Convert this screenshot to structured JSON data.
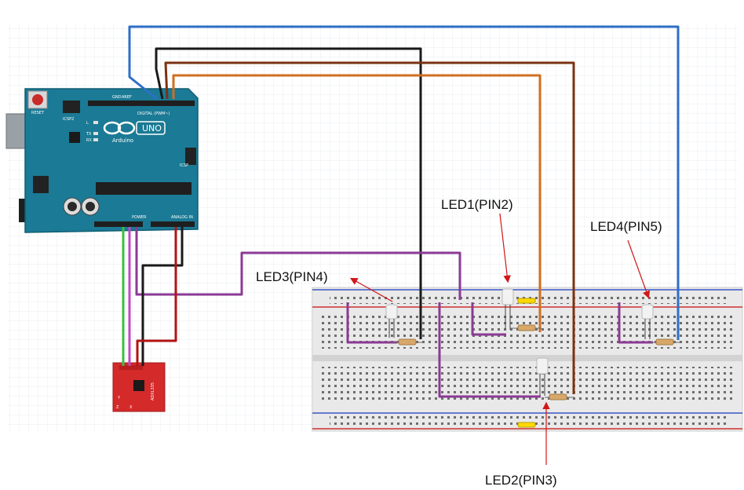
{
  "arduino": {
    "brand": "Arduino",
    "model": "UNO",
    "board_color": "#1b7a95",
    "reset_label": "RESET",
    "icsp2_label": "ICSP2",
    "icsp_label": "ICSP",
    "digital_label": "DIGITAL (PWM~)",
    "power_label": "POWER",
    "analog_label": "ANALOG IN",
    "led_l": "L",
    "led_tx": "TX",
    "led_rx": "RX",
    "aref_label": "AREF",
    "gnd_label": "GND"
  },
  "sensor": {
    "board_color": "#d42a2a",
    "part_label": "ADXL335",
    "axis_x": "X",
    "axis_y": "Y",
    "axis_z": "Z"
  },
  "labels": {
    "led1": "LED1(PIN2)",
    "led2": "LED2(PIN3)",
    "led3": "LED3(PIN4)",
    "led4": "LED4(PIN5)"
  },
  "wire_colors": {
    "blue": "#2e6fc7",
    "black": "#1a1a1a",
    "brown": "#7a3212",
    "orange": "#d26e1e",
    "purple": "#8b3a94",
    "green": "#38c23c",
    "magenta": "#c04ac4",
    "red": "#b31313",
    "annotation_arrow": "#d01818"
  }
}
